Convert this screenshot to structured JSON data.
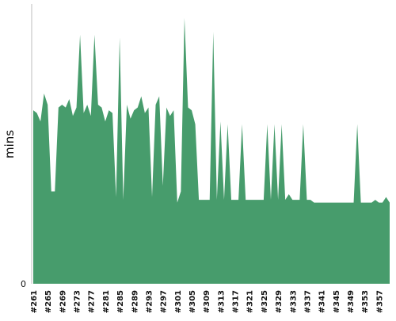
{
  "chart_data": {
    "type": "area",
    "title": "",
    "ylabel": "mins",
    "xlabel": "",
    "ylim": [
      0,
      100
    ],
    "yticks": [
      "0"
    ],
    "grid": false,
    "legend": "none",
    "series_color": "#479c6c",
    "x_tick_labels": [
      "#261",
      "#265",
      "#269",
      "#273",
      "#277",
      "#281",
      "#285",
      "#289",
      "#293",
      "#297",
      "#301",
      "#305",
      "#309",
      "#313",
      "#317",
      "#321",
      "#325",
      "#329",
      "#333",
      "#337",
      "#341",
      "#345",
      "#349",
      "#353",
      "#357"
    ],
    "x": [
      261,
      262,
      263,
      264,
      265,
      266,
      267,
      268,
      269,
      270,
      271,
      272,
      273,
      274,
      275,
      276,
      277,
      278,
      279,
      280,
      281,
      282,
      283,
      284,
      285,
      286,
      287,
      288,
      289,
      290,
      291,
      292,
      293,
      294,
      295,
      296,
      297,
      298,
      299,
      300,
      301,
      302,
      303,
      304,
      305,
      306,
      307,
      308,
      309,
      310,
      311,
      312,
      313,
      314,
      315,
      316,
      317,
      318,
      319,
      320,
      321,
      322,
      323,
      324,
      325,
      326,
      327,
      328,
      329,
      330,
      331,
      332,
      333,
      334,
      335,
      336,
      337,
      338,
      339,
      340,
      341,
      342,
      343,
      344,
      345,
      346,
      347,
      348,
      349,
      350,
      351,
      352,
      353,
      354,
      355,
      356,
      357,
      358,
      359,
      360
    ],
    "values": [
      62,
      61,
      58,
      68,
      64,
      33,
      33,
      63,
      64,
      63,
      66,
      60,
      63,
      89,
      61,
      64,
      60,
      89,
      64,
      63,
      58,
      62,
      61,
      31,
      88,
      30,
      64,
      59,
      62,
      63,
      67,
      61,
      63,
      31,
      64,
      67,
      35,
      63,
      60,
      62,
      29,
      33,
      95,
      63,
      62,
      57,
      30,
      30,
      30,
      30,
      90,
      30,
      58,
      30,
      57,
      30,
      30,
      30,
      57,
      30,
      30,
      30,
      30,
      30,
      30,
      57,
      30,
      57,
      30,
      57,
      30,
      32,
      30,
      30,
      30,
      57,
      30,
      30,
      29,
      29,
      29,
      29,
      29,
      29,
      29,
      29,
      29,
      29,
      29,
      29,
      57,
      29,
      29,
      29,
      29,
      30,
      29,
      29,
      31,
      29
    ]
  }
}
